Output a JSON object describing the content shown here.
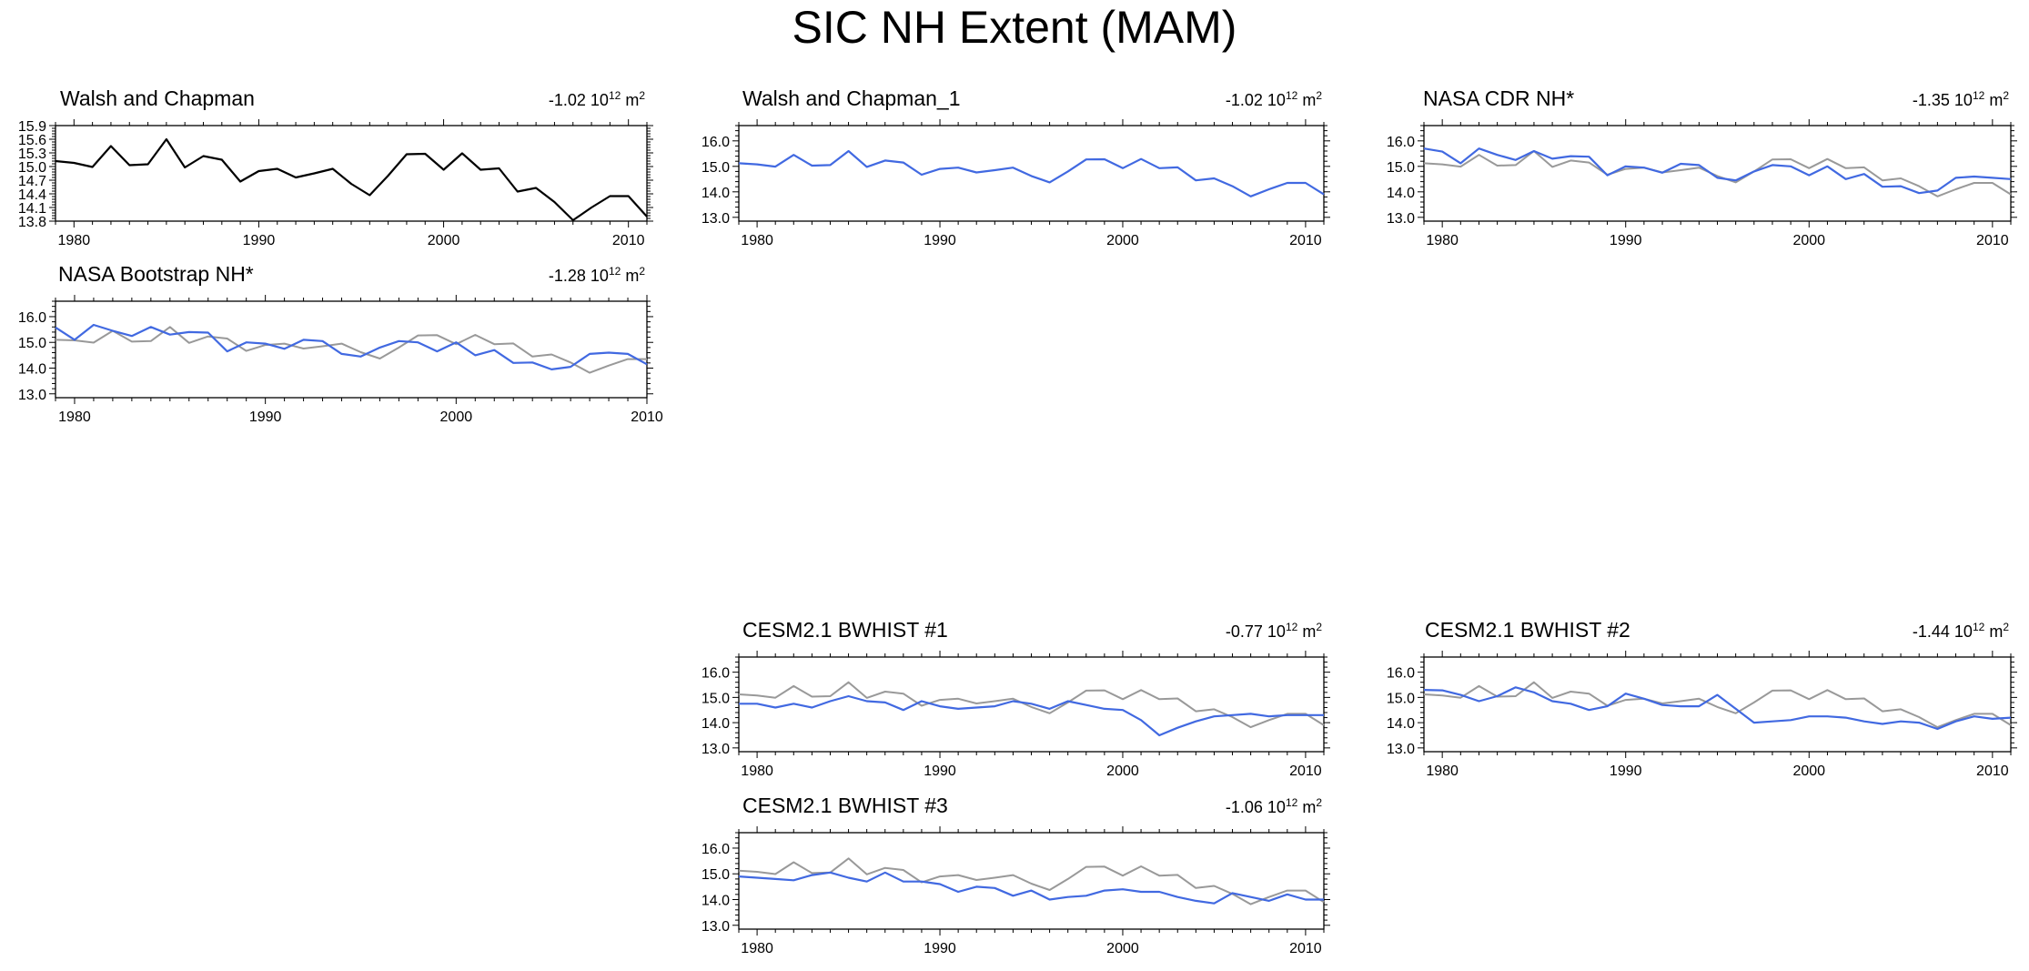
{
  "title": "SIC NH Extent (MAM)",
  "colors": {
    "obs": "#000000",
    "model": "#4169e1",
    "ref": "#999999"
  },
  "chart_data": [
    {
      "type": "line",
      "title": "Walsh and Chapman",
      "trend_value": "-1.02",
      "trend_base": "10",
      "trend_exp": "12",
      "trend_unit": "m",
      "trend_unit_exp": "2",
      "xlim": [
        1979,
        2011
      ],
      "ylim": [
        13.8,
        15.9
      ],
      "yticks": [
        "15.9",
        "15.6",
        "15.3",
        "15.0",
        "14.7",
        "14.4",
        "14.1",
        "13.8"
      ],
      "xticks": [
        "1980",
        "1990",
        "2000",
        "2010"
      ],
      "x": [
        1979,
        1980,
        1981,
        1982,
        1983,
        1984,
        1985,
        1986,
        1987,
        1988,
        1989,
        1990,
        1991,
        1992,
        1993,
        1994,
        1995,
        1996,
        1997,
        1998,
        1999,
        2000,
        2001,
        2002,
        2003,
        2004,
        2005,
        2006,
        2007,
        2008,
        2009,
        2010,
        2011
      ],
      "series": [
        {
          "name": "Walsh and Chapman",
          "role": "obs",
          "values": [
            15.12,
            15.08,
            14.99,
            15.45,
            15.03,
            15.05,
            15.6,
            14.98,
            15.23,
            15.15,
            14.67,
            14.9,
            14.95,
            14.76,
            14.85,
            14.95,
            14.62,
            14.37,
            14.8,
            15.27,
            15.28,
            14.93,
            15.29,
            14.93,
            14.96,
            14.45,
            14.53,
            14.22,
            13.82,
            14.1,
            14.35,
            14.35,
            13.9
          ]
        }
      ]
    },
    {
      "type": "line",
      "title": "NASA Bootstrap NH*",
      "trend_value": "-1.28",
      "trend_base": "10",
      "trend_exp": "12",
      "trend_unit": "m",
      "trend_unit_exp": "2",
      "xlim": [
        1979,
        2010
      ],
      "ylim": [
        12.85,
        16.6
      ],
      "yticks": [
        "16.0",
        "15.0",
        "14.0",
        "13.0"
      ],
      "xticks": [
        "1980",
        "1990",
        "2000",
        "2010"
      ],
      "x": [
        1979,
        1980,
        1981,
        1982,
        1983,
        1984,
        1985,
        1986,
        1987,
        1988,
        1989,
        1990,
        1991,
        1992,
        1993,
        1994,
        1995,
        1996,
        1997,
        1998,
        1999,
        2000,
        2001,
        2002,
        2003,
        2004,
        2005,
        2006,
        2007,
        2008,
        2009,
        2010
      ],
      "series": [
        {
          "name": "Walsh and Chapman",
          "role": "ref",
          "values": [
            15.1,
            15.08,
            14.99,
            15.45,
            15.03,
            15.05,
            15.6,
            14.98,
            15.23,
            15.15,
            14.67,
            14.9,
            14.95,
            14.76,
            14.85,
            14.95,
            14.62,
            14.37,
            14.8,
            15.27,
            15.28,
            14.93,
            15.29,
            14.93,
            14.96,
            14.45,
            14.53,
            14.22,
            13.82,
            14.1,
            14.35,
            14.35
          ]
        },
        {
          "name": "NASA Bootstrap NH*",
          "role": "model",
          "values": [
            15.58,
            15.1,
            15.68,
            15.45,
            15.25,
            15.6,
            15.3,
            15.4,
            15.38,
            14.65,
            15.0,
            14.95,
            14.75,
            15.1,
            15.05,
            14.55,
            14.45,
            14.8,
            15.05,
            15.0,
            14.65,
            15.0,
            14.5,
            14.7,
            14.2,
            14.22,
            13.95,
            14.05,
            14.55,
            14.6,
            14.55,
            14.15
          ]
        }
      ]
    },
    {
      "type": "line",
      "title": "Walsh and Chapman_1",
      "trend_value": "-1.02",
      "trend_base": "10",
      "trend_exp": "12",
      "trend_unit": "m",
      "trend_unit_exp": "2",
      "xlim": [
        1979,
        2011
      ],
      "ylim": [
        12.85,
        16.6
      ],
      "yticks": [
        "16.0",
        "15.0",
        "14.0",
        "13.0"
      ],
      "xticks": [
        "1980",
        "1990",
        "2000",
        "2010"
      ],
      "x": [
        1979,
        1980,
        1981,
        1982,
        1983,
        1984,
        1985,
        1986,
        1987,
        1988,
        1989,
        1990,
        1991,
        1992,
        1993,
        1994,
        1995,
        1996,
        1997,
        1998,
        1999,
        2000,
        2001,
        2002,
        2003,
        2004,
        2005,
        2006,
        2007,
        2008,
        2009,
        2010,
        2011
      ],
      "series": [
        {
          "name": "Walsh and Chapman_1",
          "role": "model",
          "values": [
            15.12,
            15.08,
            14.99,
            15.45,
            15.03,
            15.05,
            15.6,
            14.98,
            15.23,
            15.15,
            14.67,
            14.9,
            14.95,
            14.76,
            14.85,
            14.95,
            14.62,
            14.37,
            14.8,
            15.27,
            15.28,
            14.93,
            15.29,
            14.93,
            14.96,
            14.45,
            14.53,
            14.22,
            13.82,
            14.1,
            14.35,
            14.35,
            13.9
          ]
        }
      ]
    },
    {
      "type": "line",
      "title": "NASA CDR NH*",
      "trend_value": "-1.35",
      "trend_base": "10",
      "trend_exp": "12",
      "trend_unit": "m",
      "trend_unit_exp": "2",
      "xlim": [
        1979,
        2011
      ],
      "ylim": [
        12.85,
        16.6
      ],
      "yticks": [
        "16.0",
        "15.0",
        "14.0",
        "13.0"
      ],
      "xticks": [
        "1980",
        "1990",
        "2000",
        "2010"
      ],
      "x": [
        1979,
        1980,
        1981,
        1982,
        1983,
        1984,
        1985,
        1986,
        1987,
        1988,
        1989,
        1990,
        1991,
        1992,
        1993,
        1994,
        1995,
        1996,
        1997,
        1998,
        1999,
        2000,
        2001,
        2002,
        2003,
        2004,
        2005,
        2006,
        2007,
        2008,
        2009,
        2010,
        2011
      ],
      "series": [
        {
          "name": "Walsh and Chapman",
          "role": "ref",
          "values": [
            15.12,
            15.08,
            14.99,
            15.45,
            15.03,
            15.05,
            15.6,
            14.98,
            15.23,
            15.15,
            14.67,
            14.9,
            14.95,
            14.76,
            14.85,
            14.95,
            14.62,
            14.37,
            14.8,
            15.27,
            15.28,
            14.93,
            15.29,
            14.93,
            14.96,
            14.45,
            14.53,
            14.22,
            13.82,
            14.1,
            14.35,
            14.35,
            13.9
          ]
        },
        {
          "name": "NASA CDR NH*",
          "role": "model",
          "values": [
            15.7,
            15.58,
            15.12,
            15.7,
            15.45,
            15.25,
            15.6,
            15.3,
            15.4,
            15.38,
            14.65,
            15.0,
            14.95,
            14.75,
            15.1,
            15.05,
            14.55,
            14.45,
            14.8,
            15.05,
            15.0,
            14.65,
            15.0,
            14.5,
            14.7,
            14.2,
            14.22,
            13.95,
            14.05,
            14.55,
            14.6,
            14.55,
            14.5
          ]
        }
      ]
    },
    {
      "type": "line",
      "title": "CESM2.1 BWHIST #1",
      "trend_value": "-0.77",
      "trend_base": "10",
      "trend_exp": "12",
      "trend_unit": "m",
      "trend_unit_exp": "2",
      "xlim": [
        1979,
        2011
      ],
      "ylim": [
        12.85,
        16.6
      ],
      "yticks": [
        "16.0",
        "15.0",
        "14.0",
        "13.0"
      ],
      "xticks": [
        "1980",
        "1990",
        "2000",
        "2010"
      ],
      "x": [
        1979,
        1980,
        1981,
        1982,
        1983,
        1984,
        1985,
        1986,
        1987,
        1988,
        1989,
        1990,
        1991,
        1992,
        1993,
        1994,
        1995,
        1996,
        1997,
        1998,
        1999,
        2000,
        2001,
        2002,
        2003,
        2004,
        2005,
        2006,
        2007,
        2008,
        2009,
        2010,
        2011
      ],
      "series": [
        {
          "name": "Walsh and Chapman",
          "role": "ref",
          "values": [
            15.12,
            15.08,
            14.99,
            15.45,
            15.03,
            15.05,
            15.6,
            14.98,
            15.23,
            15.15,
            14.67,
            14.9,
            14.95,
            14.76,
            14.85,
            14.95,
            14.62,
            14.37,
            14.8,
            15.27,
            15.28,
            14.93,
            15.29,
            14.93,
            14.96,
            14.45,
            14.53,
            14.22,
            13.82,
            14.1,
            14.35,
            14.35,
            13.9
          ]
        },
        {
          "name": "CESM2.1 BWHIST #1",
          "role": "model",
          "values": [
            14.75,
            14.75,
            14.6,
            14.75,
            14.6,
            14.85,
            15.05,
            14.85,
            14.8,
            14.5,
            14.85,
            14.65,
            14.55,
            14.6,
            14.65,
            14.85,
            14.75,
            14.55,
            14.85,
            14.7,
            14.55,
            14.5,
            14.1,
            13.5,
            13.8,
            14.05,
            14.25,
            14.3,
            14.35,
            14.25,
            14.3,
            14.3,
            14.3
          ]
        }
      ]
    },
    {
      "type": "line",
      "title": "CESM2.1 BWHIST #2",
      "trend_value": "-1.44",
      "trend_base": "10",
      "trend_exp": "12",
      "trend_unit": "m",
      "trend_unit_exp": "2",
      "xlim": [
        1979,
        2011
      ],
      "ylim": [
        12.85,
        16.6
      ],
      "yticks": [
        "16.0",
        "15.0",
        "14.0",
        "13.0"
      ],
      "xticks": [
        "1980",
        "1990",
        "2000",
        "2010"
      ],
      "x": [
        1979,
        1980,
        1981,
        1982,
        1983,
        1984,
        1985,
        1986,
        1987,
        1988,
        1989,
        1990,
        1991,
        1992,
        1993,
        1994,
        1995,
        1996,
        1997,
        1998,
        1999,
        2000,
        2001,
        2002,
        2003,
        2004,
        2005,
        2006,
        2007,
        2008,
        2009,
        2010,
        2011
      ],
      "series": [
        {
          "name": "Walsh and Chapman",
          "role": "ref",
          "values": [
            15.12,
            15.08,
            14.99,
            15.45,
            15.03,
            15.05,
            15.6,
            14.98,
            15.23,
            15.15,
            14.67,
            14.9,
            14.95,
            14.76,
            14.85,
            14.95,
            14.62,
            14.37,
            14.8,
            15.27,
            15.28,
            14.93,
            15.29,
            14.93,
            14.96,
            14.45,
            14.53,
            14.22,
            13.82,
            14.1,
            14.35,
            14.35,
            13.9
          ]
        },
        {
          "name": "CESM2.1 BWHIST #2",
          "role": "model",
          "values": [
            15.3,
            15.28,
            15.1,
            14.85,
            15.05,
            15.4,
            15.2,
            14.85,
            14.75,
            14.5,
            14.65,
            15.15,
            14.95,
            14.7,
            14.65,
            14.65,
            15.1,
            14.55,
            14.0,
            14.05,
            14.1,
            14.25,
            14.25,
            14.2,
            14.05,
            13.95,
            14.05,
            14.0,
            13.75,
            14.05,
            14.25,
            14.15,
            14.2
          ]
        }
      ]
    },
    {
      "type": "line",
      "title": "CESM2.1 BWHIST #3",
      "trend_value": "-1.06",
      "trend_base": "10",
      "trend_exp": "12",
      "trend_unit": "m",
      "trend_unit_exp": "2",
      "xlim": [
        1979,
        2011
      ],
      "ylim": [
        12.85,
        16.6
      ],
      "yticks": [
        "16.0",
        "15.0",
        "14.0",
        "13.0"
      ],
      "xticks": [
        "1980",
        "1990",
        "2000",
        "2010"
      ],
      "x": [
        1979,
        1980,
        1981,
        1982,
        1983,
        1984,
        1985,
        1986,
        1987,
        1988,
        1989,
        1990,
        1991,
        1992,
        1993,
        1994,
        1995,
        1996,
        1997,
        1998,
        1999,
        2000,
        2001,
        2002,
        2003,
        2004,
        2005,
        2006,
        2007,
        2008,
        2009,
        2010,
        2011
      ],
      "series": [
        {
          "name": "Walsh and Chapman",
          "role": "ref",
          "values": [
            15.12,
            15.08,
            14.99,
            15.45,
            15.03,
            15.05,
            15.6,
            14.98,
            15.23,
            15.15,
            14.67,
            14.9,
            14.95,
            14.76,
            14.85,
            14.95,
            14.62,
            14.37,
            14.8,
            15.27,
            15.28,
            14.93,
            15.29,
            14.93,
            14.96,
            14.45,
            14.53,
            14.22,
            13.82,
            14.1,
            14.35,
            14.35,
            13.9
          ]
        },
        {
          "name": "CESM2.1 BWHIST #3",
          "role": "model",
          "values": [
            14.9,
            14.85,
            14.8,
            14.75,
            14.95,
            15.05,
            14.85,
            14.7,
            15.05,
            14.7,
            14.7,
            14.6,
            14.3,
            14.5,
            14.45,
            14.15,
            14.35,
            14.0,
            14.1,
            14.15,
            14.35,
            14.4,
            14.3,
            14.3,
            14.1,
            13.95,
            13.85,
            14.25,
            14.1,
            13.95,
            14.2,
            14.0,
            14.0
          ]
        }
      ]
    }
  ]
}
